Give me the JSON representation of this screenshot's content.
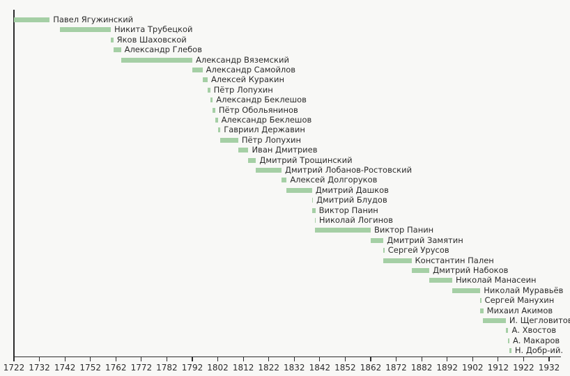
{
  "chart_data": {
    "type": "bar",
    "variant": "horizontal-gantt-timeline",
    "title": "",
    "xlabel": "",
    "ylabel": "",
    "unit": "year",
    "x_range": [
      1722,
      1935
    ],
    "x_ticks": [
      1722,
      1732,
      1742,
      1752,
      1762,
      1772,
      1782,
      1792,
      1802,
      1812,
      1822,
      1832,
      1842,
      1852,
      1862,
      1872,
      1882,
      1892,
      1902,
      1912,
      1922,
      1932
    ],
    "grid": false,
    "legend": false,
    "colors": {
      "bar_fill": "#a5cfa5",
      "axis": "#2b2b2b",
      "text": "#2b2b2b",
      "background": "#f8f8f6"
    },
    "series": [
      {
        "label": "Павел Ягужинский",
        "start": 1722,
        "end": 1736
      },
      {
        "label": "Никита Трубецкой",
        "start": 1740,
        "end": 1760
      },
      {
        "label": "Яков Шаховской",
        "start": 1760,
        "end": 1761
      },
      {
        "label": "Александр Глебов",
        "start": 1761,
        "end": 1764
      },
      {
        "label": "Александр Вяземский",
        "start": 1764,
        "end": 1792
      },
      {
        "label": "Александр Самойлов",
        "start": 1792,
        "end": 1796
      },
      {
        "label": "Алексей Куракин",
        "start": 1796,
        "end": 1798
      },
      {
        "label": "Пётр Лопухин",
        "start": 1798,
        "end": 1799
      },
      {
        "label": "Александр Беклешов",
        "start": 1799,
        "end": 1800
      },
      {
        "label": "Пётр Обольянинов",
        "start": 1800,
        "end": 1801
      },
      {
        "label": "Александр Беклешов",
        "start": 1801,
        "end": 1802
      },
      {
        "label": "Гавриил Державин",
        "start": 1802,
        "end": 1803
      },
      {
        "label": "Пётр Лопухин",
        "start": 1803,
        "end": 1810
      },
      {
        "label": "Иван Дмитриев",
        "start": 1810,
        "end": 1814
      },
      {
        "label": "Дмитрий Трощинский",
        "start": 1814,
        "end": 1817
      },
      {
        "label": "Дмитрий Лобанов-Ростовский",
        "start": 1817,
        "end": 1827
      },
      {
        "label": "Алексей Долгоруков",
        "start": 1827,
        "end": 1829
      },
      {
        "label": "Дмитрий Дашков",
        "start": 1829,
        "end": 1839
      },
      {
        "label": "Дмитрий Блудов",
        "start": 1839,
        "end": 1839.3
      },
      {
        "label": "Виктор Панин",
        "start": 1839,
        "end": 1840.3
      },
      {
        "label": "Николай Логинов",
        "start": 1840,
        "end": 1840.3
      },
      {
        "label": "Виктор Панин",
        "start": 1840,
        "end": 1862
      },
      {
        "label": "Дмитрий Замятин",
        "start": 1862,
        "end": 1867
      },
      {
        "label": "Сергей Урусов",
        "start": 1867,
        "end": 1867.4
      },
      {
        "label": "Константин Пален",
        "start": 1867,
        "end": 1878
      },
      {
        "label": "Дмитрий Набоков",
        "start": 1878,
        "end": 1885
      },
      {
        "label": "Николай Манасеин",
        "start": 1885,
        "end": 1894
      },
      {
        "label": "Николай Муравьёв",
        "start": 1894,
        "end": 1905
      },
      {
        "label": "Сергей Манухин",
        "start": 1905,
        "end": 1905.3
      },
      {
        "label": "Михаил Акимов",
        "start": 1905,
        "end": 1906.2
      },
      {
        "label": "И. Щегловитов",
        "start": 1906,
        "end": 1915
      },
      {
        "label": "А. Хвостов",
        "start": 1915,
        "end": 1916
      },
      {
        "label": "А. Макаров",
        "start": 1916,
        "end": 1916.4
      },
      {
        "label": "Н. Добр-ий.",
        "start": 1916.4,
        "end": 1917.2
      }
    ]
  }
}
